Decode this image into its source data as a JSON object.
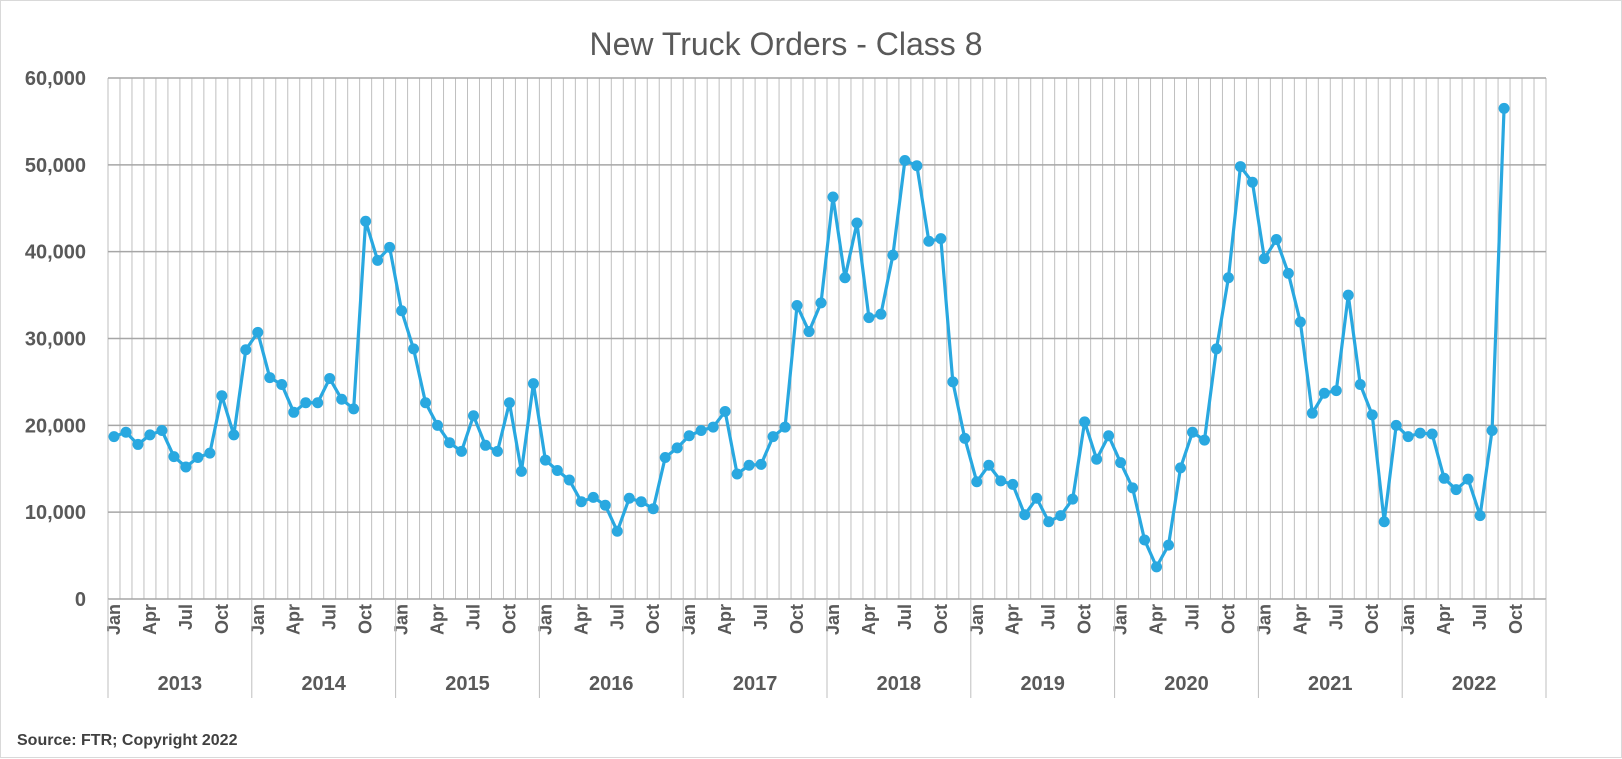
{
  "chart_data": {
    "type": "line",
    "title": "New Truck Orders - Class 8",
    "source": "Source: FTR; Copyright 2022",
    "ylim": [
      0,
      60000
    ],
    "yticks": [
      "0",
      "10,000",
      "20,000",
      "30,000",
      "40,000",
      "50,000",
      "60,000"
    ],
    "ytick_values": [
      0,
      10000,
      20000,
      30000,
      40000,
      50000,
      60000
    ],
    "month_labels": [
      "Jan",
      "Apr",
      "Jul",
      "Oct"
    ],
    "years": [
      "2013",
      "2014",
      "2015",
      "2016",
      "2017",
      "2018",
      "2019",
      "2020",
      "2021",
      "2022"
    ],
    "grid": true,
    "colors": {
      "line": "#29a8e0",
      "grid": "#bfbfbf",
      "text": "#595959"
    },
    "series": [
      {
        "values": [
          18700,
          19200,
          17800,
          18900,
          19400,
          16400,
          15200,
          16300,
          16800,
          23400,
          18900,
          28700,
          30700,
          25500,
          24700,
          21500,
          22600,
          22600,
          25400,
          23000,
          21900,
          43500,
          39000,
          40500,
          33200,
          28800,
          22600,
          20000,
          18000,
          17000,
          21100,
          17700,
          17000,
          22600,
          14700,
          24800,
          16000,
          14800,
          13700,
          11200,
          11700,
          10800,
          7800,
          11600,
          11200,
          10400,
          16300,
          17400,
          18800,
          19400,
          19800,
          21600,
          14400,
          15400,
          15500,
          18700,
          19800,
          33800,
          30800,
          34100,
          46300,
          37000,
          43300,
          32400,
          32800,
          39600,
          50500,
          49900,
          41200,
          41500,
          25000,
          18500,
          13500,
          15400,
          13600,
          13200,
          9700,
          11600,
          8900,
          9600,
          11500,
          20400,
          16100,
          18800,
          15700,
          12800,
          6800,
          3700,
          6200,
          15100,
          19200,
          18300,
          28800,
          37000,
          49800,
          48000,
          39200,
          41400,
          37500,
          31900,
          21400,
          23700,
          24000,
          35000,
          24700,
          21200,
          8900,
          20000,
          18700,
          19100,
          19000,
          13900,
          12600,
          13800,
          9600,
          19400,
          56500
        ]
      }
    ]
  }
}
